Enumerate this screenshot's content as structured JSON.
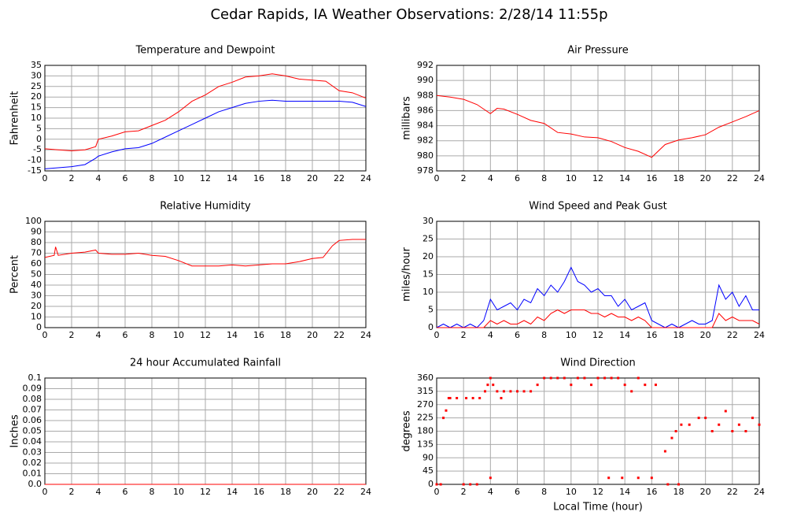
{
  "title": "Cedar Rapids, IA Weather Observations: 2/28/14 11:55p",
  "chart_data": [
    {
      "type": "line",
      "title": "Temperature and Dewpoint",
      "y_label": "Fahrenheit",
      "x": [
        0,
        1,
        2,
        3,
        3.8,
        4,
        5,
        6,
        7,
        8,
        9,
        10,
        11,
        12,
        13,
        14,
        15,
        16,
        17,
        18,
        19,
        20,
        21,
        22,
        23,
        24
      ],
      "series": [
        {
          "color": "#ff0000",
          "values": [
            -4.5,
            -5,
            -5.5,
            -5,
            -3.5,
            0,
            1.5,
            3.5,
            4,
            6.5,
            9,
            13,
            18,
            21,
            25,
            27,
            29.5,
            30,
            31,
            30,
            28.5,
            28,
            27.5,
            23,
            22,
            19.5
          ]
        },
        {
          "color": "#0000ff",
          "values": [
            -14,
            -13.5,
            -13,
            -12,
            -9,
            -8,
            -6,
            -4.5,
            -4,
            -2,
            1,
            4,
            7,
            10,
            13,
            15,
            17,
            18,
            18.5,
            18,
            18,
            18,
            18,
            18,
            17.5,
            15.5
          ]
        }
      ],
      "xlim": [
        0,
        24
      ],
      "xticks": [
        0,
        2,
        4,
        6,
        8,
        10,
        12,
        14,
        16,
        18,
        20,
        22,
        24
      ],
      "ylim": [
        -15,
        35
      ],
      "yticks": [
        -15,
        -10,
        -5,
        0,
        5,
        10,
        15,
        20,
        25,
        30,
        35
      ],
      "grid": true
    },
    {
      "type": "line",
      "title": "Air Pressure",
      "y_label": "millibars",
      "x": [
        0,
        1,
        2,
        3,
        4,
        4.5,
        5,
        6,
        7,
        8,
        9,
        10,
        11,
        12,
        13,
        14,
        15,
        16,
        17,
        18,
        19,
        20,
        21,
        22,
        23,
        24
      ],
      "series": [
        {
          "color": "#ff0000",
          "values": [
            988,
            987.8,
            987.5,
            986.8,
            985.6,
            986.3,
            986.2,
            985.5,
            984.7,
            984.3,
            983.1,
            982.9,
            982.5,
            982.4,
            981.9,
            981.1,
            980.6,
            979.8,
            981.5,
            982.1,
            982.4,
            982.8,
            983.8,
            984.5,
            985.2,
            986
          ]
        }
      ],
      "xlim": [
        0,
        24
      ],
      "xticks": [
        0,
        2,
        4,
        6,
        8,
        10,
        12,
        14,
        16,
        18,
        20,
        22,
        24
      ],
      "ylim": [
        978,
        992
      ],
      "yticks": [
        978,
        980,
        982,
        984,
        986,
        988,
        990,
        992
      ],
      "grid": true
    },
    {
      "type": "line",
      "title": "Relative Humidity",
      "y_label": "Percent",
      "x": [
        0,
        0.7,
        0.8,
        1,
        2,
        3,
        3.8,
        4,
        5,
        6,
        7,
        8,
        9,
        10,
        11,
        12,
        13,
        14,
        15,
        16,
        17,
        18,
        19,
        20,
        20.8,
        21.5,
        22,
        23,
        24
      ],
      "series": [
        {
          "color": "#ff0000",
          "values": [
            66,
            68,
            76,
            68,
            70,
            71,
            73,
            70,
            69,
            69,
            70,
            68,
            67,
            63,
            58,
            58,
            58,
            59,
            58,
            59,
            60,
            60,
            62,
            65,
            66,
            77,
            82,
            83,
            83
          ]
        }
      ],
      "xlim": [
        0,
        24
      ],
      "xticks": [
        0,
        2,
        4,
        6,
        8,
        10,
        12,
        14,
        16,
        18,
        20,
        22,
        24
      ],
      "ylim": [
        0,
        100
      ],
      "yticks": [
        0,
        10,
        20,
        30,
        40,
        50,
        60,
        70,
        80,
        90,
        100
      ],
      "grid": true
    },
    {
      "type": "line",
      "title": "Wind Speed and Peak Gust",
      "y_label": "miles/hour",
      "x": [
        0,
        0.5,
        1,
        1.5,
        2,
        2.5,
        3,
        3.5,
        4,
        4.5,
        5,
        5.5,
        6,
        6.5,
        7,
        7.5,
        8,
        8.5,
        9,
        9.5,
        10,
        10.5,
        11,
        11.5,
        12,
        12.5,
        13,
        13.5,
        14,
        14.5,
        15,
        15.5,
        16,
        16.5,
        17,
        17.5,
        18,
        18.5,
        19,
        19.5,
        20,
        20.5,
        21,
        21.5,
        22,
        22.5,
        23,
        23.5,
        24
      ],
      "series": [
        {
          "color": "#0000ff",
          "values": [
            0,
            1,
            0,
            1,
            0,
            1,
            0,
            2,
            8,
            5,
            6,
            7,
            5,
            8,
            7,
            11,
            9,
            12,
            10,
            13,
            17,
            13,
            12,
            10,
            11,
            9,
            9,
            6,
            8,
            5,
            6,
            7,
            2,
            1,
            0,
            1,
            0,
            1,
            2,
            1,
            1,
            2,
            12,
            8,
            10,
            6,
            9,
            5,
            5
          ]
        },
        {
          "color": "#ff0000",
          "values": [
            0,
            0,
            0,
            0,
            0,
            0,
            0,
            0,
            2,
            1,
            2,
            1,
            1,
            2,
            1,
            3,
            2,
            4,
            5,
            4,
            5,
            5,
            5,
            4,
            4,
            3,
            4,
            3,
            3,
            2,
            3,
            2,
            0,
            0,
            0,
            0,
            0,
            0,
            0,
            0,
            0,
            0,
            4,
            2,
            3,
            2,
            2,
            2,
            1
          ]
        }
      ],
      "xlim": [
        0,
        24
      ],
      "xticks": [
        0,
        2,
        4,
        6,
        8,
        10,
        12,
        14,
        16,
        18,
        20,
        22,
        24
      ],
      "ylim": [
        0,
        30
      ],
      "yticks": [
        0,
        5,
        10,
        15,
        20,
        25,
        30
      ],
      "grid": true
    },
    {
      "type": "line",
      "title": "24 hour Accumulated Rainfall",
      "y_label": "Inches",
      "x": [
        0,
        24
      ],
      "series": [
        {
          "color": "#ff0000",
          "values": [
            0,
            0
          ]
        }
      ],
      "xlim": [
        0,
        24
      ],
      "xticks": [
        0,
        2,
        4,
        6,
        8,
        10,
        12,
        14,
        16,
        18,
        20,
        22,
        24
      ],
      "ylim": [
        0,
        0.1
      ],
      "yticks": [
        {
          "value": 0,
          "label": "0.0"
        },
        0.01,
        0.02,
        0.03,
        0.04,
        0.05,
        0.06,
        0.07,
        0.08,
        0.09,
        0.1
      ],
      "grid": true
    },
    {
      "type": "scatter",
      "title": "Wind Direction",
      "y_label": "degrees",
      "x_label": "Local Time (hour)",
      "x": [
        0,
        0.3,
        0.5,
        0.7,
        0.9,
        1,
        1.5,
        2,
        2.5,
        3,
        2.2,
        2.7,
        3.2,
        3.6,
        3.8,
        4,
        4,
        4.2,
        4.5,
        4.8,
        5,
        5.5,
        6,
        6.5,
        7,
        7.5,
        8,
        8.5,
        9,
        9.5,
        10,
        10.5,
        11,
        11.5,
        12,
        12.5,
        12.8,
        13,
        13.5,
        13.8,
        14,
        14.5,
        15,
        15,
        15.5,
        16,
        16.3,
        17,
        17.2,
        17.5,
        17.8,
        18,
        18.2,
        18.8,
        19.5,
        20,
        20.5,
        21,
        21.5,
        22,
        22.5,
        23,
        23.5,
        24
      ],
      "series": [
        {
          "color": "#ff0000",
          "values": [
            0,
            0,
            225,
            250,
            292,
            292,
            292,
            0,
            0,
            0,
            292,
            292,
            292,
            315,
            337,
            360,
            22,
            337,
            315,
            292,
            315,
            315,
            315,
            315,
            315,
            337,
            360,
            360,
            360,
            360,
            337,
            360,
            360,
            337,
            360,
            360,
            22,
            360,
            360,
            22,
            337,
            315,
            360,
            22,
            337,
            22,
            337,
            112,
            0,
            157,
            180,
            0,
            202,
            202,
            225,
            225,
            180,
            202,
            248,
            180,
            202,
            180,
            225,
            202
          ]
        }
      ],
      "xlim": [
        0,
        24
      ],
      "xticks": [
        0,
        2,
        4,
        6,
        8,
        10,
        12,
        14,
        16,
        18,
        20,
        22,
        24
      ],
      "ylim": [
        0,
        360
      ],
      "yticks": [
        0,
        45,
        90,
        135,
        180,
        225,
        270,
        315,
        360
      ],
      "grid": true
    }
  ]
}
